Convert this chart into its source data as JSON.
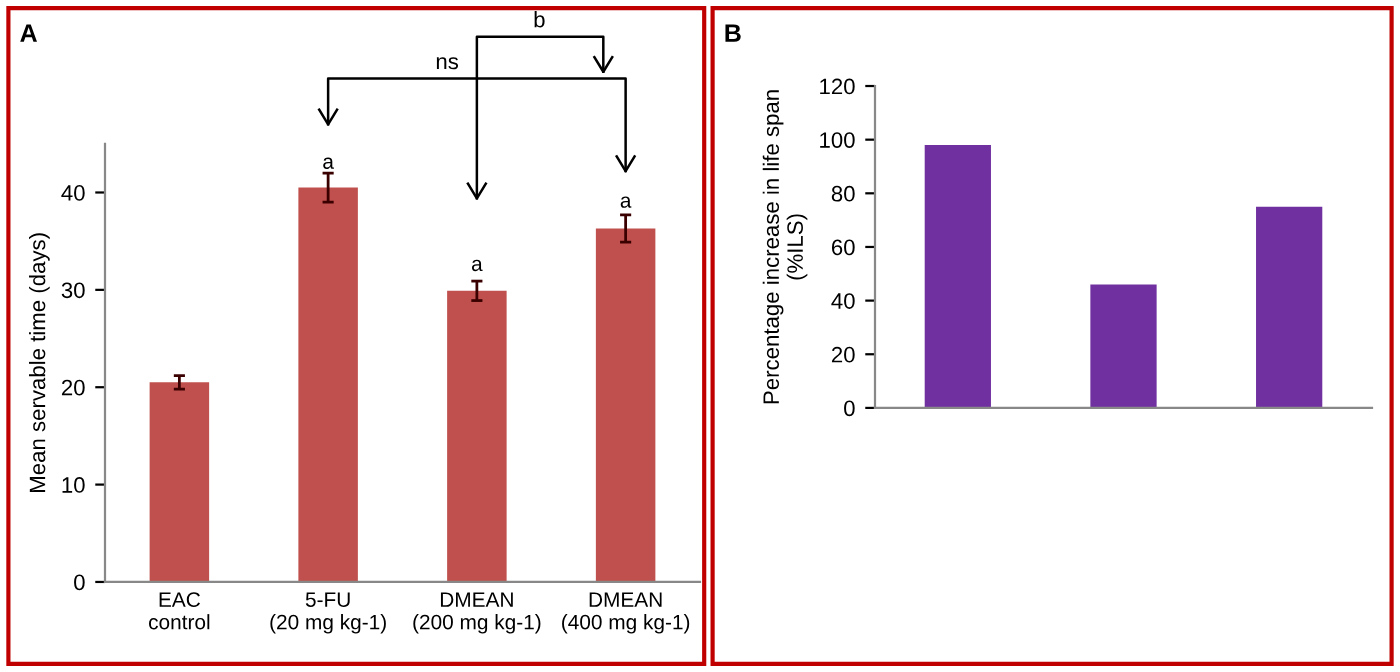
{
  "chart_data": [
    {
      "type": "bar",
      "title": "A",
      "ylabel": "Mean servable time (days)",
      "categories": [
        "EAC\ncontrol",
        "5-FU\n(20 mg kg-1)",
        "DMEAN\n(200 mg kg-1)",
        "DMEAN\n(400 mg kg-1)"
      ],
      "series": [
        {
          "color": "#c0504d",
          "values": [
            20.5,
            40.5,
            29.9,
            36.3
          ],
          "errors": [
            0.7,
            1.5,
            1.0,
            1.4
          ]
        }
      ],
      "ylim": [
        0,
        45
      ],
      "yticks": [
        0,
        10,
        20,
        30,
        40
      ],
      "grid": false,
      "legend": false,
      "annotations": [
        {
          "text": "a",
          "x": "5-FU\n(20 mg kg-1)",
          "y": 42
        },
        {
          "text": "a",
          "x": "DMEAN\n(200 mg kg-1)",
          "y": 31.5
        },
        {
          "text": "a",
          "x": "DMEAN\n(400 mg kg-1)",
          "y": 38
        },
        "ns",
        "b"
      ]
    },
    {
      "type": "bar",
      "title": "B",
      "ylabel": "Percentage increase in life span\n(%ILS)",
      "categories": [
        null,
        null,
        null
      ],
      "series": [
        {
          "color": "#7030a0",
          "values": [
            98,
            46,
            75
          ]
        }
      ],
      "ylim": [
        0,
        120
      ],
      "yticks": [
        0,
        20,
        40,
        60,
        80,
        100,
        120
      ],
      "grid": false,
      "legend": false
    }
  ]
}
